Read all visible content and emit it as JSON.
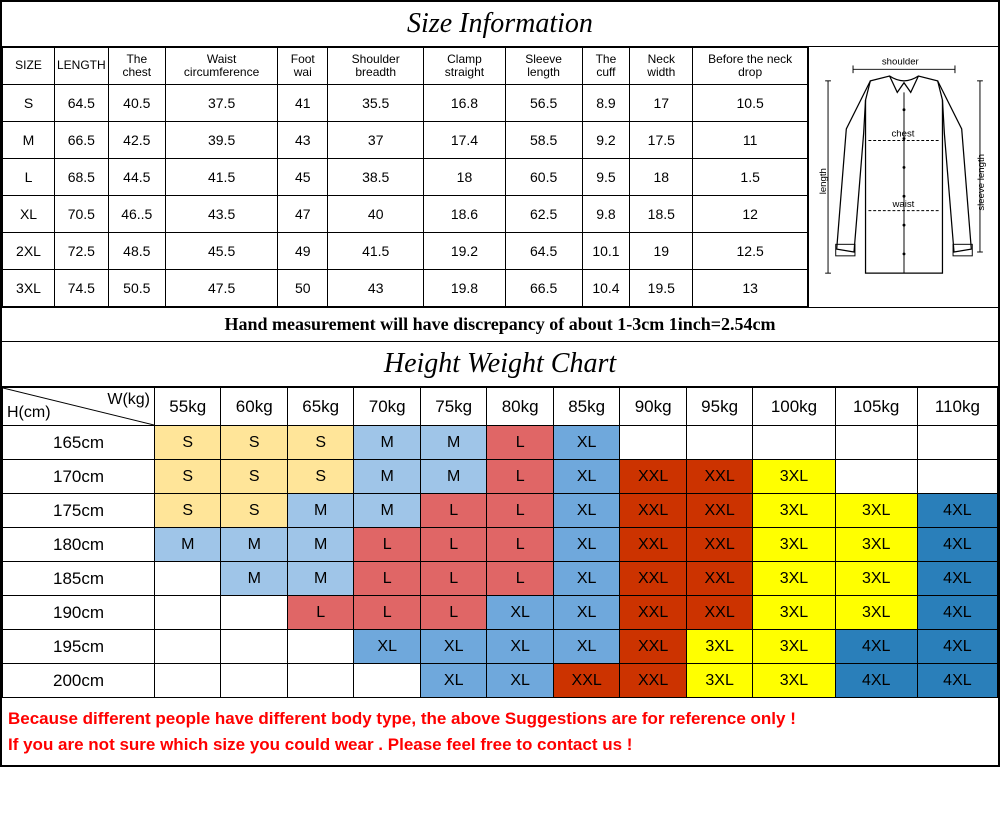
{
  "titles": {
    "size_info": "Size Information",
    "hw_chart": "Height Weight Chart"
  },
  "size_table": {
    "columns": [
      "SIZE",
      "LENGTH",
      "The chest",
      "Waist circumference",
      "Foot wai",
      "Shoulder breadth",
      "Clamp straight",
      "Sleeve length",
      "The cuff",
      "Neck width",
      "Before the neck drop"
    ],
    "rows": [
      [
        "S",
        "64.5",
        "40.5",
        "37.5",
        "41",
        "35.5",
        "16.8",
        "56.5",
        "8.9",
        "17",
        "10.5"
      ],
      [
        "M",
        "66.5",
        "42.5",
        "39.5",
        "43",
        "37",
        "17.4",
        "58.5",
        "9.2",
        "17.5",
        "11"
      ],
      [
        "L",
        "68.5",
        "44.5",
        "41.5",
        "45",
        "38.5",
        "18",
        "60.5",
        "9.5",
        "18",
        "1.5"
      ],
      [
        "XL",
        "70.5",
        "46..5",
        "43.5",
        "47",
        "40",
        "18.6",
        "62.5",
        "9.8",
        "18.5",
        "12"
      ],
      [
        "2XL",
        "72.5",
        "48.5",
        "45.5",
        "49",
        "41.5",
        "19.2",
        "64.5",
        "10.1",
        "19",
        "12.5"
      ],
      [
        "3XL",
        "74.5",
        "50.5",
        "47.5",
        "50",
        "43",
        "19.8",
        "66.5",
        "10.4",
        "19.5",
        "13"
      ]
    ]
  },
  "diagram_labels": {
    "shoulder": "shoulder",
    "chest": "chest",
    "waist": "waist",
    "length": "length",
    "sleeve": "sleeve length"
  },
  "note": "Hand measurement will have discrepancy of about 1-3cm  1inch=2.54cm",
  "hw_chart": {
    "h_label": "H(cm)",
    "w_label": "W(kg)",
    "weights": [
      "55kg",
      "60kg",
      "65kg",
      "70kg",
      "75kg",
      "80kg",
      "85kg",
      "90kg",
      "95kg",
      "100kg",
      "105kg",
      "110kg"
    ],
    "heights": [
      "165cm",
      "170cm",
      "175cm",
      "180cm",
      "185cm",
      "190cm",
      "195cm",
      "200cm"
    ],
    "cells": [
      [
        "S",
        "S",
        "S",
        "M",
        "M",
        "L",
        "XL",
        "",
        "",
        "",
        "",
        ""
      ],
      [
        "S",
        "S",
        "S",
        "M",
        "M",
        "L",
        "XL",
        "XXL",
        "XXL",
        "3XL",
        "",
        ""
      ],
      [
        "S",
        "S",
        "M",
        "M",
        "L",
        "L",
        "XL",
        "XXL",
        "XXL",
        "3XL",
        "3XL",
        "4XL"
      ],
      [
        "M",
        "M",
        "M",
        "L",
        "L",
        "L",
        "XL",
        "XXL",
        "XXL",
        "3XL",
        "3XL",
        "4XL"
      ],
      [
        "",
        "M",
        "M",
        "L",
        "L",
        "L",
        "XL",
        "XXL",
        "XXL",
        "3XL",
        "3XL",
        "4XL"
      ],
      [
        "",
        "",
        "L",
        "L",
        "L",
        "XL",
        "XL",
        "XXL",
        "XXL",
        "3XL",
        "3XL",
        "4XL"
      ],
      [
        "",
        "",
        "",
        "XL",
        "XL",
        "XL",
        "XL",
        "XXL",
        "3XL",
        "3XL",
        "4XL",
        "4XL"
      ],
      [
        "",
        "",
        "",
        "",
        "XL",
        "XL",
        "XXL",
        "XXL",
        "3XL",
        "3XL",
        "4XL",
        "4XL"
      ]
    ],
    "cell_colors": {
      "S": "#ffe599",
      "M": "#9fc5e8",
      "L": "#e06666",
      "XL": "#6fa8dc",
      "XXL": "#cc3300",
      "3XL": "#ffff00",
      "4XL": "#2a7fba",
      "": "#ffffff"
    }
  },
  "disclaimer": {
    "line1": "Because different people have different body type, the above Suggestions are for reference only !",
    "line2": "If you are not sure which size you could wear . Please feel free to contact us !"
  }
}
